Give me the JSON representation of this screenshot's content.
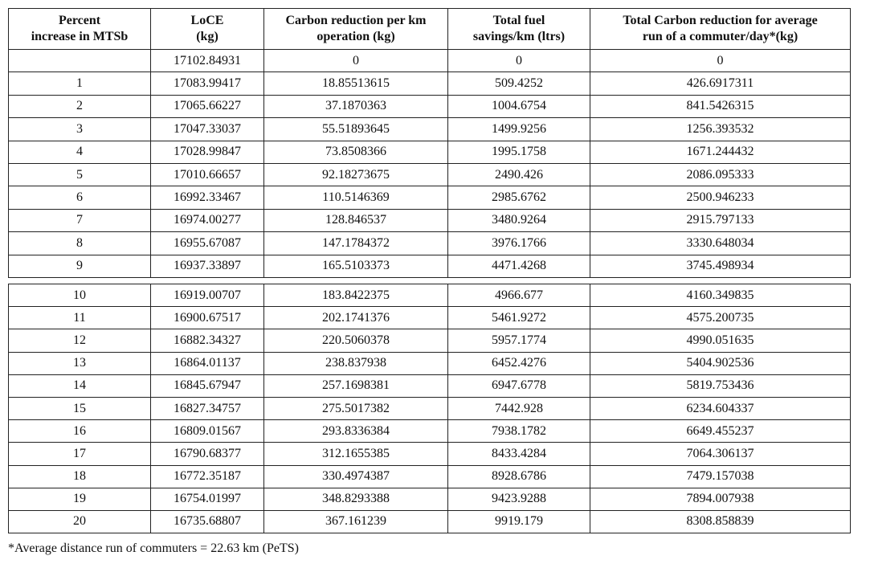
{
  "headers": [
    [
      "Percent",
      "increase in MTSb"
    ],
    [
      "LoCE",
      "(kg)"
    ],
    [
      "Carbon reduction per km",
      "operation (kg)"
    ],
    [
      "Total fuel",
      "savings/km (ltrs)"
    ],
    [
      "Total Carbon reduction for average",
      "run of  a commuter/day*(kg)"
    ]
  ],
  "rows_top": [
    [
      "",
      "17102.84931",
      "0",
      "0",
      "0"
    ],
    [
      "1",
      "17083.99417",
      "18.85513615",
      "509.4252",
      "426.6917311"
    ],
    [
      "2",
      "17065.66227",
      "37.1870363",
      "1004.6754",
      "841.5426315"
    ],
    [
      "3",
      "17047.33037",
      "55.51893645",
      "1499.9256",
      "1256.393532"
    ],
    [
      "4",
      "17028.99847",
      "73.8508366",
      "1995.1758",
      "1671.244432"
    ],
    [
      "5",
      "17010.66657",
      "92.18273675",
      "2490.426",
      "2086.095333"
    ],
    [
      "6",
      "16992.33467",
      "110.5146369",
      "2985.6762",
      "2500.946233"
    ],
    [
      "7",
      "16974.00277",
      "128.846537",
      "3480.9264",
      "2915.797133"
    ],
    [
      "8",
      "16955.67087",
      "147.1784372",
      "3976.1766",
      "3330.648034"
    ],
    [
      "9",
      "16937.33897",
      "165.5103373",
      "4471.4268",
      "3745.498934"
    ]
  ],
  "rows_bottom": [
    [
      "10",
      "16919.00707",
      "183.8422375",
      "4966.677",
      "4160.349835"
    ],
    [
      "11",
      "16900.67517",
      "202.1741376",
      "5461.9272",
      "4575.200735"
    ],
    [
      "12",
      "16882.34327",
      "220.5060378",
      "5957.1774",
      "4990.051635"
    ],
    [
      "13",
      "16864.01137",
      "238.837938",
      "6452.4276",
      "5404.902536"
    ],
    [
      "14",
      "16845.67947",
      "257.1698381",
      "6947.6778",
      "5819.753436"
    ],
    [
      "15",
      "16827.34757",
      "275.5017382",
      "7442.928",
      "6234.604337"
    ],
    [
      "16",
      "16809.01567",
      "293.8336384",
      "7938.1782",
      "6649.455237"
    ],
    [
      "17",
      "16790.68377",
      "312.1655385",
      "8433.4284",
      "7064.306137"
    ],
    [
      "18",
      "16772.35187",
      "330.4974387",
      "8928.6786",
      "7479.157038"
    ],
    [
      "19",
      "16754.01997",
      "348.8293388",
      "9423.9288",
      "7894.007938"
    ],
    [
      "20",
      "16735.68807",
      "367.161239",
      "9919.179",
      "8308.858839"
    ]
  ],
  "footnote": "*Average distance run of commuters = 22.63 km (PeTS)"
}
